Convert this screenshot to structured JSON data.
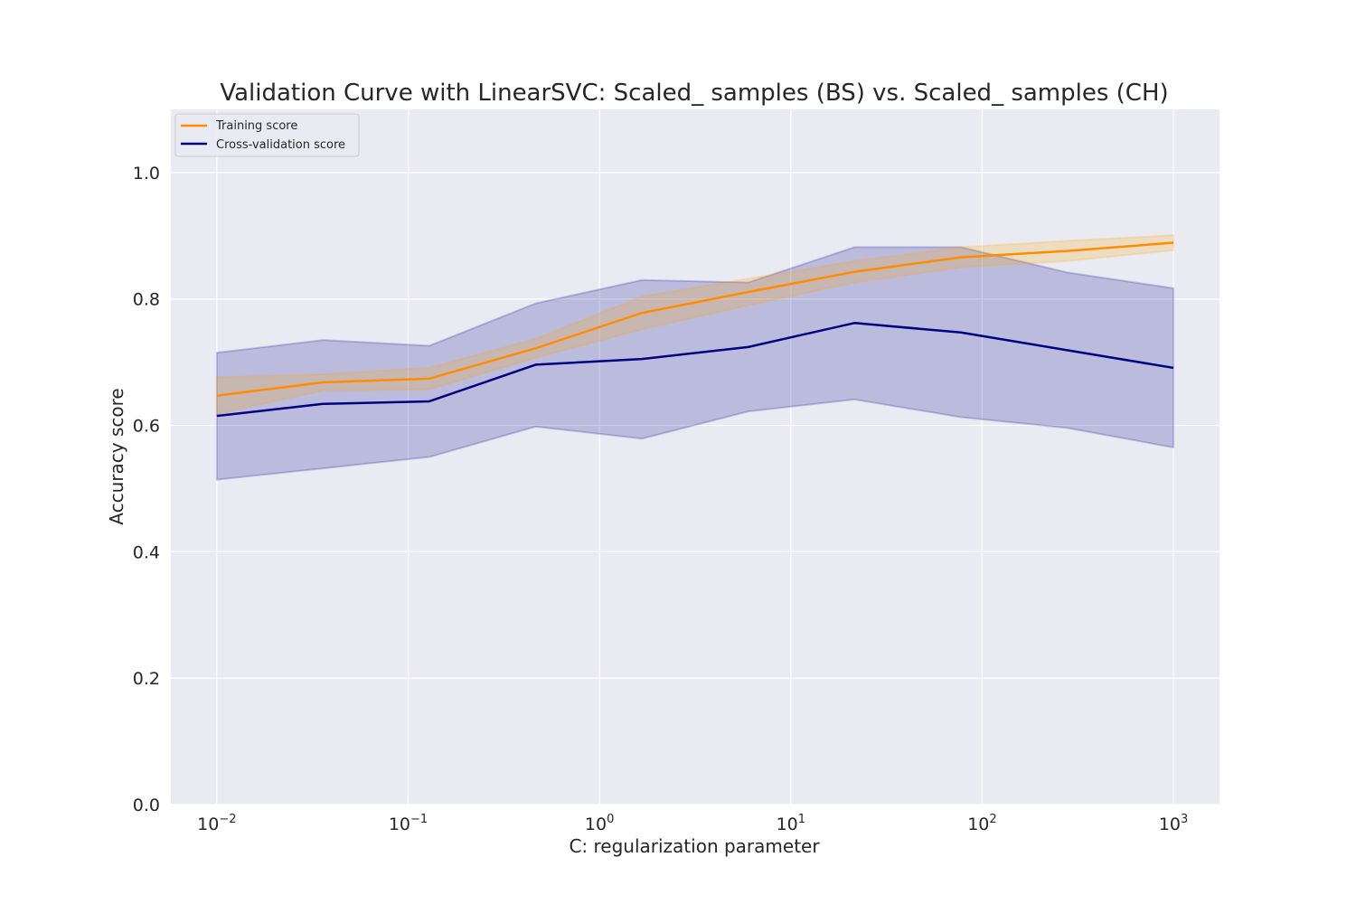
{
  "chart_data": {
    "type": "line",
    "title": "Validation Curve with LinearSVC: Scaled_ samples (BS) vs. Scaled_ samples (CH)",
    "xlabel": "C: regularization parameter",
    "ylabel": "Accuracy score",
    "xscale": "log",
    "xlim": [
      0.00575,
      1740
    ],
    "ylim": [
      0.0,
      1.1
    ],
    "grid": true,
    "legend_position": "upper left",
    "x_ticks": [
      {
        "value": 0.01,
        "base": "10",
        "exp": "−2"
      },
      {
        "value": 0.1,
        "base": "10",
        "exp": "−1"
      },
      {
        "value": 1,
        "base": "10",
        "exp": "0"
      },
      {
        "value": 10,
        "base": "10",
        "exp": "1"
      },
      {
        "value": 100,
        "base": "10",
        "exp": "2"
      },
      {
        "value": 1000,
        "base": "10",
        "exp": "3"
      }
    ],
    "y_ticks": [
      {
        "value": 0.0,
        "label": "0.0"
      },
      {
        "value": 0.2,
        "label": "0.2"
      },
      {
        "value": 0.4,
        "label": "0.4"
      },
      {
        "value": 0.6,
        "label": "0.6"
      },
      {
        "value": 0.8,
        "label": "0.8"
      },
      {
        "value": 1.0,
        "label": "1.0"
      }
    ],
    "x": [
      0.01,
      0.0359,
      0.129,
      0.464,
      1.67,
      5.99,
      21.5,
      77.4,
      278,
      1000
    ],
    "series": [
      {
        "name": "Training score",
        "color": "#ff8c00",
        "band_color": "#ffa500",
        "values": [
          0.647,
          0.668,
          0.674,
          0.722,
          0.778,
          0.811,
          0.843,
          0.866,
          0.876,
          0.889
        ],
        "lower": [
          0.618,
          0.655,
          0.657,
          0.707,
          0.752,
          0.79,
          0.826,
          0.85,
          0.86,
          0.877
        ],
        "upper": [
          0.676,
          0.681,
          0.691,
          0.737,
          0.804,
          0.832,
          0.86,
          0.882,
          0.892,
          0.901
        ]
      },
      {
        "name": "Cross-validation score",
        "color": "#000080",
        "band_color": "#00008b",
        "values": [
          0.615,
          0.634,
          0.638,
          0.696,
          0.705,
          0.724,
          0.762,
          0.747,
          0.719,
          0.691
        ],
        "lower": [
          0.514,
          0.532,
          0.55,
          0.598,
          0.579,
          0.622,
          0.641,
          0.613,
          0.596,
          0.565
        ],
        "upper": [
          0.715,
          0.735,
          0.726,
          0.793,
          0.83,
          0.826,
          0.882,
          0.882,
          0.842,
          0.817
        ]
      }
    ]
  }
}
